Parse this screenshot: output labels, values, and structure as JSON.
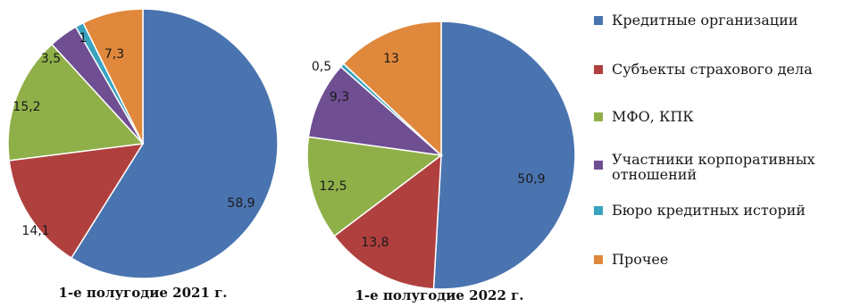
{
  "colors": {
    "credit": "#4a74b0",
    "insurance": "#b0403e",
    "mfo": "#8fb049",
    "corporate": "#6f4e92",
    "bureau": "#3aa3bf",
    "other": "#e0883b"
  },
  "legend": [
    {
      "key": "credit",
      "label": "Кредитные организации"
    },
    {
      "key": "insurance",
      "label": "Субъекты страхового дела"
    },
    {
      "key": "mfo",
      "label": "МФО, КПК"
    },
    {
      "key": "corporate",
      "label": "Участники корпоративных",
      "label2": "отношений"
    },
    {
      "key": "bureau",
      "label": "Бюро кредитных историй"
    },
    {
      "key": "other",
      "label": "Прочее"
    }
  ],
  "chart_data": [
    {
      "type": "pie",
      "title": "1-е полугодие 2021 г.",
      "labels": [
        "58,9",
        "14,1",
        "15,2",
        "3,5",
        "1",
        "7,3"
      ],
      "values": [
        58.9,
        14.1,
        15.2,
        3.5,
        1.0,
        7.3
      ],
      "keys": [
        "credit",
        "insurance",
        "mfo",
        "corporate",
        "bureau",
        "other"
      ]
    },
    {
      "type": "pie",
      "title": "1-е полугодие 2022 г.",
      "labels": [
        "50,9",
        "13,8",
        "12,5",
        "9,3",
        "0,5",
        "13"
      ],
      "values": [
        50.9,
        13.8,
        12.5,
        9.3,
        0.5,
        13.0
      ],
      "keys": [
        "credit",
        "insurance",
        "mfo",
        "corporate",
        "bureau",
        "other"
      ]
    }
  ]
}
